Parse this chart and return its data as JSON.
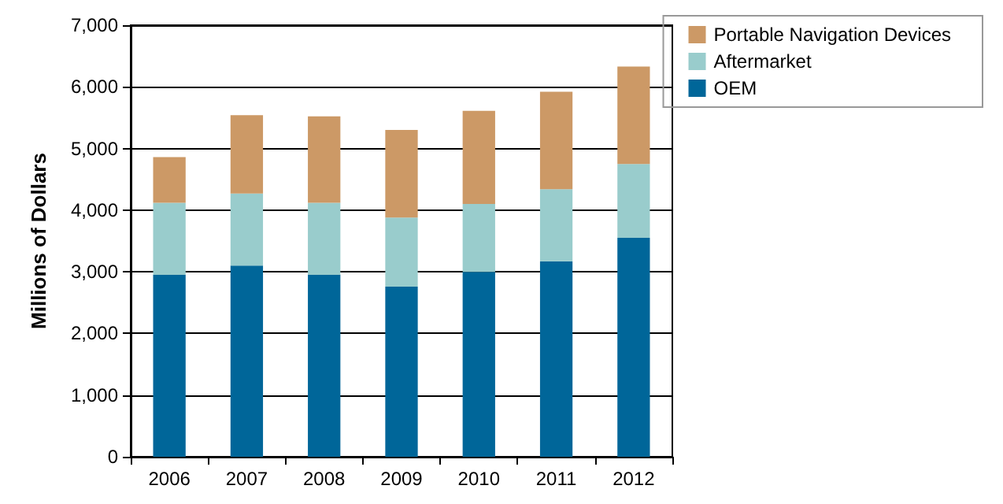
{
  "chart_data": {
    "type": "bar",
    "ylabel": "Millions of Dollars",
    "categories": [
      "2006",
      "2007",
      "2008",
      "2009",
      "2010",
      "2011",
      "2012"
    ],
    "stacked": true,
    "series": [
      {
        "name": "OEM",
        "color": "#006699",
        "values": [
          2950,
          3100,
          2950,
          2760,
          3000,
          3170,
          3550
        ]
      },
      {
        "name": "Aftermarket",
        "color": "#99cccc",
        "values": [
          1170,
          1170,
          1170,
          1120,
          1100,
          1170,
          1200
        ]
      },
      {
        "name": "Portable Navigation Devices",
        "color": "#cc9966",
        "values": [
          740,
          1270,
          1400,
          1420,
          1510,
          1580,
          1580
        ]
      }
    ],
    "ylim": [
      0,
      7000
    ],
    "yticks": [
      0,
      {
        "value": 1000,
        "label": "1,000"
      },
      {
        "value": 2000,
        "label": "2,000"
      },
      {
        "value": 3000,
        "label": "3,000"
      },
      {
        "value": 4000,
        "label": "4,000"
      },
      {
        "value": 5000,
        "label": "5,000"
      },
      {
        "value": 6000,
        "label": "6,000"
      },
      {
        "value": 7000,
        "label": "7,000"
      }
    ],
    "grid": "y",
    "legend": "top right"
  }
}
